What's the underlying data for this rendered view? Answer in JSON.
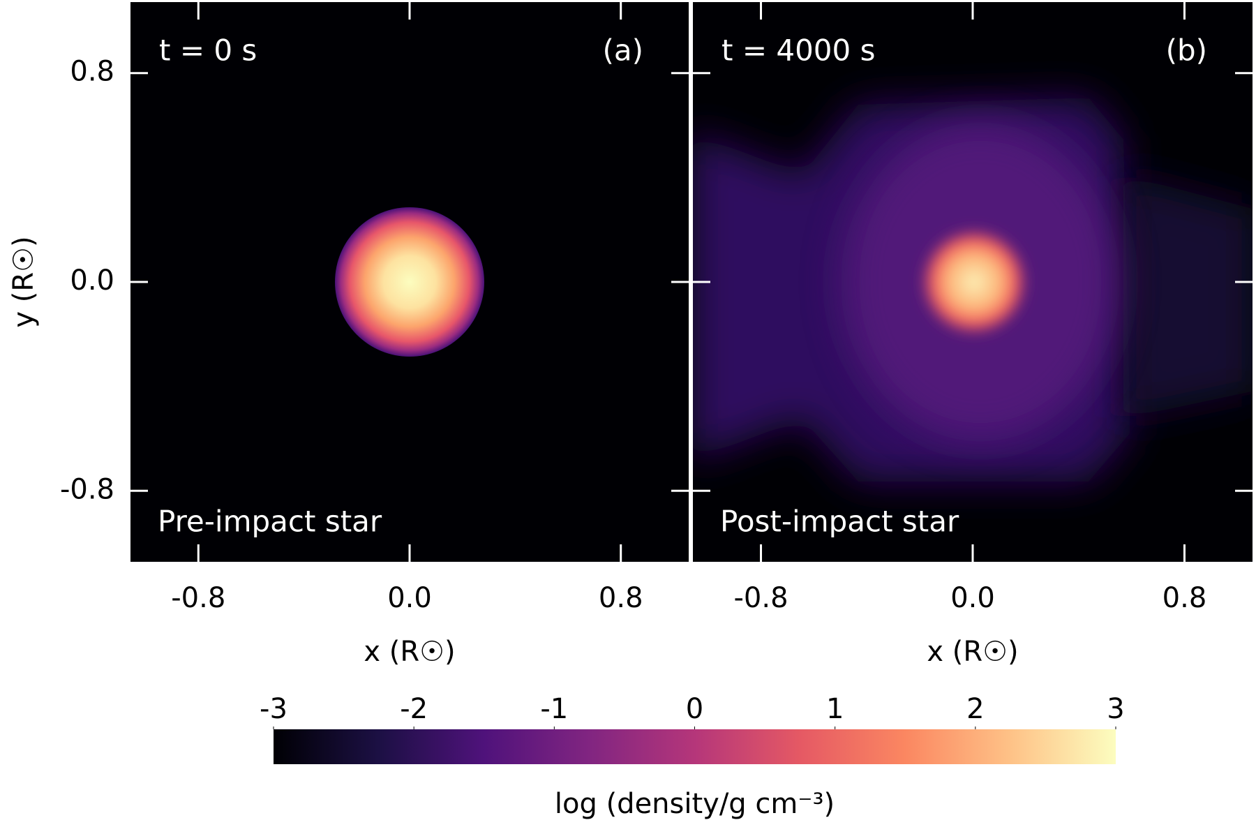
{
  "chart_data": [
    {
      "type": "heatmap",
      "annotation": "t = 0 s",
      "panel_label": "(a)",
      "caption": "Pre-impact star",
      "xlabel": "x (R☉)",
      "ylabel": "y (R☉)",
      "xlim": [
        -1.065,
        1.065
      ],
      "ylim": [
        -1.08,
        1.08
      ],
      "xticks": [
        -0.8,
        {
          "value": 0,
          "label": "0.0"
        },
        0.8
      ],
      "yticks": [
        -0.8,
        {
          "value": 0,
          "label": "0.0"
        },
        0.8
      ]
    },
    {
      "type": "heatmap",
      "annotation": "t = 4000 s",
      "panel_label": "(b)",
      "caption": "Post-impact star",
      "xlabel": "x (R☉)",
      "xlim": [
        -1.065,
        1.065
      ],
      "ylim": [
        -1.08,
        1.08
      ],
      "xticks": [
        -0.8,
        {
          "value": 0,
          "label": "0.0"
        },
        0.8
      ],
      "yticks": [
        -0.8,
        {
          "value": 0,
          "label": "0.0"
        },
        0.8
      ],
      "ytick_labels": false
    },
    {
      "type": "colorbar",
      "label": "log (density/g cm⁻³)",
      "colormap": "magma",
      "xlim": [
        -3,
        3
      ],
      "xticks": [
        -3,
        -2,
        -1,
        0,
        1,
        2,
        3
      ]
    }
  ]
}
